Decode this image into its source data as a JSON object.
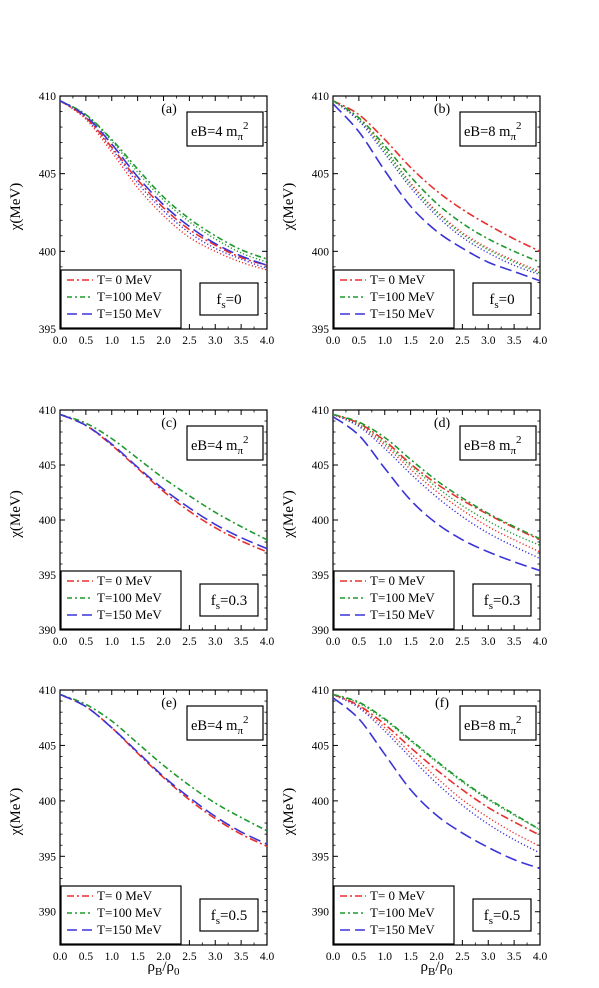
{
  "figure": {
    "xlabel": "ρB/ρ0",
    "ylabel": "χ(MeV)"
  },
  "chart_data": [
    {
      "type": "line",
      "panel": "(a)",
      "eB": "eB=4 mπ2",
      "fs": "fs=0",
      "xlim": [
        0,
        4
      ],
      "ylim": [
        395,
        410
      ],
      "xticks": [
        "0.0",
        "0.5",
        "1.0",
        "1.5",
        "2.0",
        "2.5",
        "3.0",
        "3.5",
        "4.0"
      ],
      "yticks": [
        395,
        400,
        405,
        410
      ],
      "xlabel": "ρB/ρ0",
      "ylabel": "χ(MeV)",
      "legend": [
        "T= 0 MeV",
        "T=100 MeV",
        "T=150 MeV"
      ],
      "x": [
        0,
        0.5,
        1,
        1.5,
        2,
        2.5,
        3,
        3.5,
        4
      ],
      "series": [
        {
          "name": "T= 0 MeV",
          "color": "#e8302c",
          "y": [
            409.7,
            408.6,
            406.7,
            404.6,
            402.8,
            401.4,
            400.4,
            399.6,
            399.1
          ]
        },
        {
          "name": "T=100 MeV",
          "color": "#1f9a2e",
          "y": [
            409.7,
            408.8,
            407.2,
            405.3,
            403.5,
            402.1,
            401.0,
            400.1,
            399.5
          ]
        },
        {
          "name": "T=150 MeV",
          "color": "#3a34d9",
          "y": [
            409.7,
            408.7,
            406.9,
            404.8,
            403.0,
            401.6,
            400.5,
            399.7,
            399.1
          ]
        }
      ],
      "extra_series": [
        {
          "color": "#e8302c",
          "style": "dot",
          "y": [
            409.7,
            408.5,
            406.4,
            404.1,
            402.3,
            400.9,
            400.0,
            399.3,
            398.8
          ]
        },
        {
          "color": "#1f9a2e",
          "style": "dot",
          "y": [
            409.7,
            408.8,
            407.1,
            405.1,
            403.3,
            401.9,
            400.8,
            399.9,
            399.3
          ]
        },
        {
          "color": "#3a34d9",
          "style": "dot",
          "y": [
            409.7,
            408.6,
            406.6,
            404.4,
            402.6,
            401.2,
            400.2,
            399.5,
            398.9
          ]
        }
      ]
    },
    {
      "type": "line",
      "panel": "(b)",
      "eB": "eB=8 mπ2",
      "fs": "fs=0",
      "xlim": [
        0,
        4
      ],
      "ylim": [
        395,
        410
      ],
      "xticks": [
        "0.0",
        "0.5",
        "1.0",
        "1.5",
        "2.0",
        "2.5",
        "3.0",
        "3.5",
        "4.0"
      ],
      "yticks": [
        395,
        400,
        405,
        410
      ],
      "xlabel": "ρB/ρ0",
      "ylabel": "χ(MeV)",
      "legend": [
        "T= 0 MeV",
        "T=100 MeV",
        "T=150 MeV"
      ],
      "x": [
        0,
        0.5,
        1,
        1.5,
        2,
        2.5,
        3,
        3.5,
        4
      ],
      "series": [
        {
          "name": "T= 0 MeV",
          "color": "#e8302c",
          "y": [
            409.7,
            408.8,
            407.2,
            405.4,
            403.9,
            402.7,
            401.7,
            400.8,
            400.0
          ]
        },
        {
          "name": "T=100 MeV",
          "color": "#1f9a2e",
          "y": [
            409.7,
            408.6,
            406.8,
            404.8,
            403.1,
            401.8,
            400.8,
            400.0,
            399.3
          ]
        },
        {
          "name": "T=150 MeV",
          "color": "#3a34d9",
          "y": [
            409.5,
            407.7,
            405.2,
            402.9,
            401.3,
            400.2,
            399.3,
            398.7,
            398.1
          ]
        }
      ],
      "extra_series": [
        {
          "color": "#e8302c",
          "style": "dot",
          "y": [
            409.7,
            408.5,
            406.6,
            404.4,
            402.6,
            401.2,
            400.2,
            399.4,
            398.7
          ]
        },
        {
          "color": "#1f9a2e",
          "style": "dot",
          "y": [
            409.7,
            408.5,
            406.5,
            404.3,
            402.5,
            401.1,
            400.1,
            399.3,
            398.6
          ]
        },
        {
          "color": "#3a34d9",
          "style": "dot",
          "y": [
            409.7,
            408.4,
            406.3,
            404.1,
            402.3,
            400.9,
            399.9,
            399.1,
            398.5
          ]
        }
      ]
    },
    {
      "type": "line",
      "panel": "(c)",
      "eB": "eB=4 mπ2",
      "fs": "fs=0.3",
      "xlim": [
        0,
        4
      ],
      "ylim": [
        390,
        410
      ],
      "xticks": [
        "0.0",
        "0.5",
        "1.0",
        "1.5",
        "2.0",
        "2.5",
        "3.0",
        "3.5",
        "4.0"
      ],
      "yticks": [
        390,
        395,
        400,
        405,
        410
      ],
      "xlabel": "ρB/ρ0",
      "ylabel": "χ(MeV)",
      "legend": [
        "T= 0 MeV",
        "T=100 MeV",
        "T=150 MeV"
      ],
      "x": [
        0,
        0.5,
        1,
        1.5,
        2,
        2.5,
        3,
        3.5,
        4
      ],
      "series": [
        {
          "name": "T= 0 MeV",
          "color": "#e8302c",
          "y": [
            409.6,
            408.6,
            406.8,
            404.7,
            402.6,
            400.8,
            399.3,
            398.1,
            397.1
          ]
        },
        {
          "name": "T=100 MeV",
          "color": "#1f9a2e",
          "y": [
            409.6,
            408.8,
            407.4,
            405.6,
            403.8,
            402.2,
            400.7,
            399.4,
            398.2
          ]
        },
        {
          "name": "T=150 MeV",
          "color": "#3a34d9",
          "y": [
            409.6,
            408.6,
            406.9,
            404.8,
            402.8,
            401.1,
            399.6,
            398.4,
            397.4
          ]
        }
      ]
    },
    {
      "type": "line",
      "panel": "(d)",
      "eB": "eB=8 mπ2",
      "fs": "fs=0.3",
      "xlim": [
        0,
        4
      ],
      "ylim": [
        390,
        410
      ],
      "xticks": [
        "0.0",
        "0.5",
        "1.0",
        "1.5",
        "2.0",
        "2.5",
        "3.0",
        "3.5",
        "4.0"
      ],
      "yticks": [
        390,
        395,
        400,
        405,
        410
      ],
      "xlabel": "ρB/ρ0",
      "ylabel": "χ(MeV)",
      "legend": [
        "T= 0 MeV",
        "T=100 MeV",
        "T=150 MeV"
      ],
      "x": [
        0,
        0.5,
        1,
        1.5,
        2,
        2.5,
        3,
        3.5,
        4
      ],
      "series": [
        {
          "name": "T= 0 MeV",
          "color": "#e8302c",
          "y": [
            409.6,
            408.8,
            407.2,
            405.1,
            403.3,
            401.8,
            400.5,
            399.3,
            398.2
          ]
        },
        {
          "name": "T=100 MeV",
          "color": "#1f9a2e",
          "y": [
            409.6,
            408.9,
            407.5,
            405.5,
            403.6,
            402.0,
            400.6,
            399.4,
            398.3
          ]
        },
        {
          "name": "T=150 MeV",
          "color": "#3a34d9",
          "y": [
            409.4,
            407.7,
            404.7,
            401.8,
            399.7,
            398.2,
            397.1,
            396.2,
            395.4
          ]
        }
      ],
      "extra_series": [
        {
          "color": "#e8302c",
          "style": "dot",
          "y": [
            409.6,
            408.6,
            406.8,
            404.6,
            402.6,
            400.9,
            399.4,
            398.2,
            397.1
          ]
        },
        {
          "color": "#1f9a2e",
          "style": "dot",
          "y": [
            409.6,
            408.7,
            407.0,
            404.9,
            403.0,
            401.3,
            399.9,
            398.7,
            397.7
          ]
        },
        {
          "color": "#3a34d9",
          "style": "dot",
          "y": [
            409.6,
            408.5,
            406.5,
            404.2,
            402.1,
            400.3,
            398.8,
            397.6,
            396.5
          ]
        }
      ]
    },
    {
      "type": "line",
      "panel": "(e)",
      "eB": "eB=4 mπ2",
      "fs": "fs=0.5",
      "xlim": [
        0,
        4
      ],
      "ylim": [
        387,
        410
      ],
      "xticks": [
        "0.0",
        "0.5",
        "1.0",
        "1.5",
        "2.0",
        "2.5",
        "3.0",
        "3.5",
        "4.0"
      ],
      "yticks": [
        390,
        395,
        400,
        405,
        410
      ],
      "xlabel": "ρB/ρ0",
      "ylabel": "χ(MeV)",
      "legend": [
        "T= 0 MeV",
        "T=100 MeV",
        "T=150 MeV"
      ],
      "x": [
        0,
        0.5,
        1,
        1.5,
        2,
        2.5,
        3,
        3.5,
        4
      ],
      "series": [
        {
          "name": "T= 0 MeV",
          "color": "#e8302c",
          "y": [
            409.6,
            408.5,
            406.6,
            404.3,
            402.1,
            400.1,
            398.4,
            397.0,
            395.9
          ]
        },
        {
          "name": "T=100 MeV",
          "color": "#1f9a2e",
          "y": [
            409.6,
            408.7,
            407.2,
            405.2,
            403.2,
            401.4,
            399.8,
            398.5,
            397.3
          ]
        },
        {
          "name": "T=150 MeV",
          "color": "#3a34d9",
          "y": [
            409.6,
            408.5,
            406.6,
            404.4,
            402.2,
            400.3,
            398.6,
            397.2,
            396.1
          ]
        }
      ]
    },
    {
      "type": "line",
      "panel": "(f)",
      "eB": "eB=8 mπ2",
      "fs": "fs=0.5",
      "xlim": [
        0,
        4
      ],
      "ylim": [
        387,
        410
      ],
      "xticks": [
        "0.0",
        "0.5",
        "1.0",
        "1.5",
        "2.0",
        "2.5",
        "3.0",
        "3.5",
        "4.0"
      ],
      "yticks": [
        390,
        395,
        400,
        405,
        410
      ],
      "xlabel": "ρB/ρ0",
      "ylabel": "χ(MeV)",
      "legend": [
        "T= 0 MeV",
        "T=100 MeV",
        "T=150 MeV"
      ],
      "x": [
        0,
        0.5,
        1,
        1.5,
        2,
        2.5,
        3,
        3.5,
        4
      ],
      "series": [
        {
          "name": "T= 0 MeV",
          "color": "#e8302c",
          "y": [
            409.6,
            408.6,
            406.9,
            404.8,
            402.8,
            401.0,
            399.4,
            398.1,
            396.9
          ]
        },
        {
          "name": "T=100 MeV",
          "color": "#1f9a2e",
          "y": [
            409.6,
            408.9,
            407.4,
            405.5,
            403.6,
            401.8,
            400.2,
            398.8,
            397.4
          ]
        },
        {
          "name": "T=150 MeV",
          "color": "#3a34d9",
          "y": [
            409.3,
            407.4,
            404.2,
            401.0,
            398.7,
            397.1,
            395.8,
            394.7,
            393.9
          ]
        }
      ],
      "extra_series": [
        {
          "color": "#e8302c",
          "style": "dot",
          "y": [
            409.6,
            408.5,
            406.6,
            404.3,
            402.1,
            400.1,
            398.5,
            397.1,
            395.9
          ]
        },
        {
          "color": "#1f9a2e",
          "style": "dot",
          "y": [
            409.6,
            408.8,
            407.3,
            405.4,
            403.5,
            401.7,
            400.1,
            398.7,
            397.4
          ]
        },
        {
          "color": "#3a34d9",
          "style": "dot",
          "y": [
            409.6,
            408.4,
            406.3,
            403.9,
            401.6,
            399.6,
            397.9,
            396.5,
            395.3
          ]
        }
      ]
    }
  ]
}
